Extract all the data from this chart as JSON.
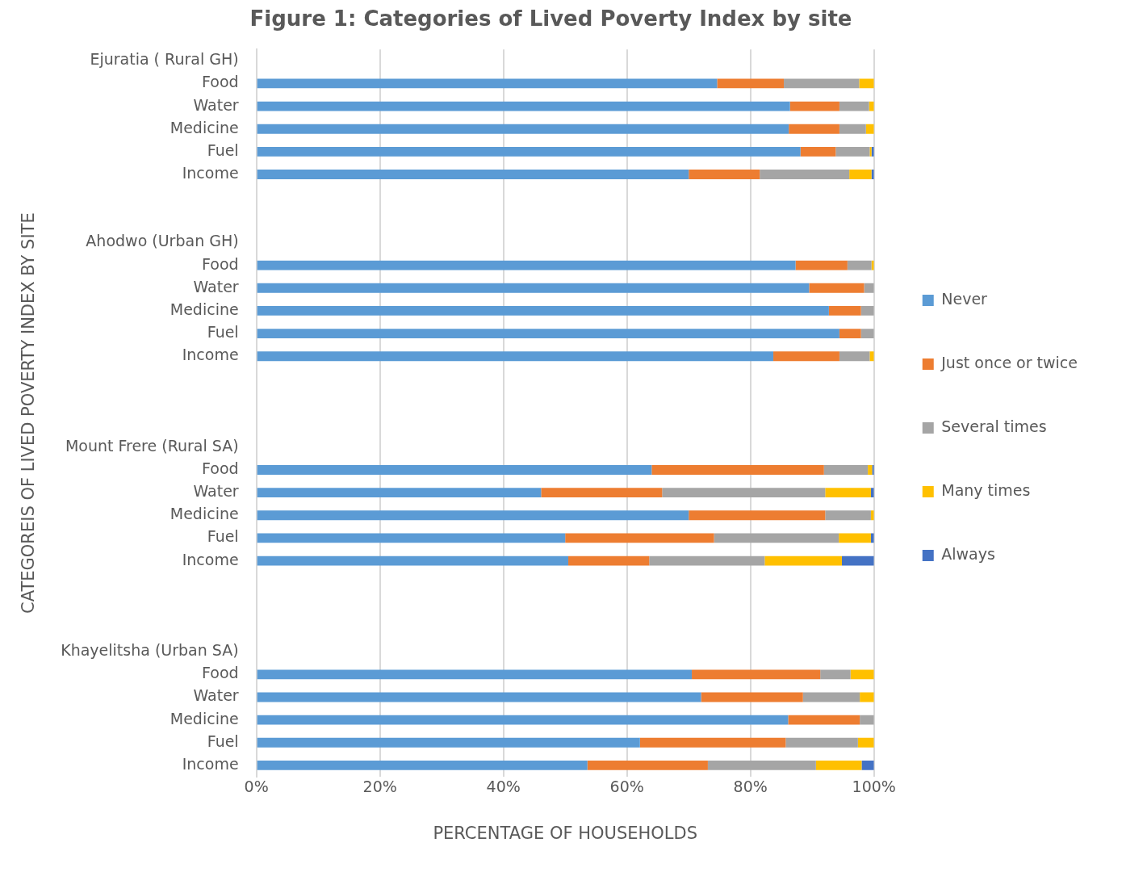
{
  "chart_data": {
    "type": "bar",
    "orientation": "horizontal",
    "stacked": true,
    "title": "Figure 1: Categories of Lived Poverty Index by site",
    "xlabel": "PERCENTAGE OF HOUSEHOLDS",
    "ylabel": "CATEGOREIS OF LIVED POVERTY INDEX BY SITE",
    "categories": [
      "Ejuratia ( Rural GH)",
      "Food",
      "Water",
      "Medicine",
      "Fuel",
      "Income",
      null,
      null,
      "Ahodwo (Urban GH)",
      "Food",
      "Water",
      "Medicine",
      "Fuel",
      "Income",
      null,
      null,
      null,
      "Mount Frere (Rural SA)",
      "Food",
      "Water",
      "Medicine",
      "Fuel",
      "Income",
      null,
      null,
      null,
      "Khayelitsha (Urban SA)",
      "Food",
      "Water",
      "Medicine",
      "Fuel",
      "Income"
    ],
    "series": [
      {
        "name": "Never",
        "color": "#5b9bd5",
        "values": [
          null,
          74.6,
          86.4,
          86.2,
          88.1,
          70.0,
          null,
          null,
          null,
          87.3,
          89.5,
          92.7,
          94.4,
          83.7,
          null,
          null,
          null,
          null,
          64.0,
          46.1,
          70.0,
          50.0,
          50.5,
          null,
          null,
          null,
          null,
          70.5,
          72.0,
          86.1,
          62.1,
          53.6
        ]
      },
      {
        "name": "Just once or twice",
        "color": "#ed7d31",
        "values": [
          null,
          10.8,
          8.0,
          8.2,
          5.7,
          11.5,
          null,
          null,
          null,
          8.4,
          8.9,
          5.2,
          3.5,
          10.7,
          null,
          null,
          null,
          null,
          27.9,
          19.6,
          22.1,
          24.1,
          13.1,
          null,
          null,
          null,
          null,
          20.8,
          16.5,
          11.6,
          23.6,
          19.5
        ]
      },
      {
        "name": "Several times",
        "color": "#a5a5a5",
        "values": [
          null,
          12.2,
          4.8,
          4.3,
          5.5,
          14.5,
          null,
          null,
          null,
          3.9,
          1.6,
          2.1,
          2.1,
          4.9,
          null,
          null,
          null,
          null,
          7.1,
          26.4,
          7.4,
          20.2,
          18.7,
          null,
          null,
          null,
          null,
          4.9,
          9.2,
          2.3,
          11.7,
          17.5
        ]
      },
      {
        "name": "Many times",
        "color": "#ffc000",
        "values": [
          null,
          2.4,
          0.8,
          1.3,
          0.3,
          3.6,
          null,
          null,
          null,
          0.4,
          null,
          null,
          null,
          0.7,
          null,
          null,
          null,
          null,
          0.7,
          7.4,
          0.5,
          5.2,
          12.5,
          null,
          null,
          null,
          null,
          3.8,
          2.3,
          null,
          2.6,
          7.4
        ]
      },
      {
        "name": "Always",
        "color": "#4472c4",
        "values": [
          null,
          null,
          null,
          null,
          0.4,
          0.4,
          null,
          null,
          null,
          null,
          null,
          null,
          null,
          null,
          null,
          null,
          null,
          null,
          0.3,
          0.5,
          null,
          0.5,
          5.2,
          null,
          null,
          null,
          null,
          null,
          null,
          null,
          null,
          2.0
        ]
      }
    ],
    "xlim": [
      0,
      100
    ],
    "xticks": [
      {
        "value": 0,
        "label": "0%"
      },
      {
        "value": 20,
        "label": "20%"
      },
      {
        "value": 40,
        "label": "40%"
      },
      {
        "value": 60,
        "label": "60%"
      },
      {
        "value": 80,
        "label": "80%"
      },
      {
        "value": 100,
        "label": "100%"
      }
    ],
    "grid": "x",
    "legend": "right"
  }
}
